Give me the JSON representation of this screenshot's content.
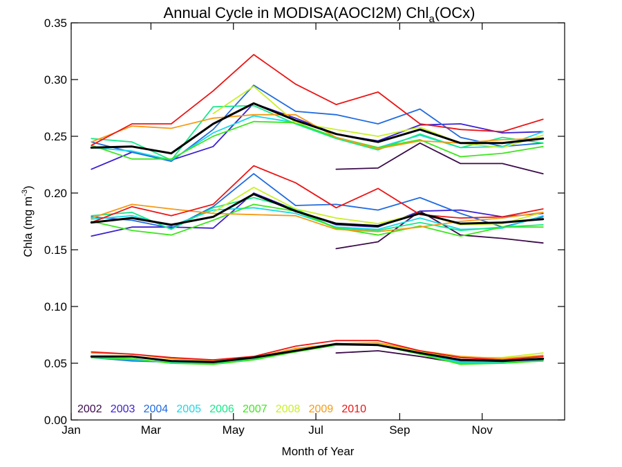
{
  "chart_data": {
    "type": "line",
    "title": "Annual Cycle in MODISA(AOCI2M) Chl",
    "title_sub_a": "a",
    "title_suffix": "(OCx)",
    "xlabel": "Month of Year",
    "ylabel": "Chla (mg m",
    "ylabel_sup": "-3",
    "ylabel_close": ")",
    "xlim": [
      0,
      365
    ],
    "ylim": [
      0,
      0.35
    ],
    "grid": false,
    "legend_position": "bottom-left",
    "x_ticks": [
      {
        "value": 0,
        "label": "Jan"
      },
      {
        "value": 59,
        "label": "Mar"
      },
      {
        "value": 120,
        "label": "May"
      },
      {
        "value": 181,
        "label": "Jul"
      },
      {
        "value": 243,
        "label": "Sep"
      },
      {
        "value": 304,
        "label": "Nov"
      }
    ],
    "y_ticks": [
      {
        "value": 0.0,
        "label": "0.00"
      },
      {
        "value": 0.05,
        "label": "0.05"
      },
      {
        "value": 0.1,
        "label": "0.10"
      },
      {
        "value": 0.15,
        "label": "0.15"
      },
      {
        "value": 0.2,
        "label": "0.20"
      },
      {
        "value": 0.25,
        "label": "0.25"
      },
      {
        "value": 0.3,
        "label": "0.30"
      },
      {
        "value": 0.35,
        "label": "0.35"
      }
    ],
    "x": [
      15,
      45,
      74,
      105,
      135,
      166,
      196,
      227,
      258,
      288,
      319,
      349
    ],
    "series": [
      {
        "name": "2002",
        "color": "#3b0a4a",
        "groups": [
          [
            null,
            null,
            null,
            null,
            null,
            null,
            0.221,
            0.222,
            0.244,
            0.226,
            0.226,
            0.217
          ],
          [
            null,
            null,
            null,
            null,
            null,
            null,
            0.151,
            0.157,
            0.184,
            0.163,
            0.16,
            0.156
          ],
          [
            null,
            null,
            null,
            null,
            null,
            null,
            0.059,
            0.061,
            0.056,
            0.05,
            0.051,
            0.053
          ]
        ]
      },
      {
        "name": "2003",
        "color": "#3a1fd0",
        "groups": [
          [
            0.221,
            0.236,
            0.229,
            0.241,
            0.279,
            0.266,
            0.252,
            0.246,
            0.26,
            0.261,
            0.253,
            0.254
          ],
          [
            0.162,
            0.17,
            0.17,
            0.169,
            0.2,
            0.185,
            0.172,
            0.17,
            0.184,
            0.185,
            0.179,
            0.182
          ],
          [
            0.055,
            0.053,
            0.051,
            0.051,
            0.054,
            0.061,
            0.067,
            0.067,
            0.059,
            0.052,
            0.051,
            0.053
          ]
        ]
      },
      {
        "name": "2004",
        "color": "#1f6be0",
        "groups": [
          [
            0.245,
            0.236,
            0.228,
            0.256,
            0.295,
            0.272,
            0.269,
            0.261,
            0.274,
            0.249,
            0.241,
            0.244
          ],
          [
            0.179,
            0.176,
            0.169,
            0.188,
            0.217,
            0.189,
            0.19,
            0.185,
            0.196,
            0.182,
            0.17,
            0.179
          ],
          [
            0.055,
            0.052,
            0.051,
            0.05,
            0.054,
            0.061,
            0.066,
            0.066,
            0.058,
            0.052,
            0.051,
            0.052
          ]
        ]
      },
      {
        "name": "2005",
        "color": "#19d7e6",
        "groups": [
          [
            0.24,
            0.237,
            0.229,
            0.253,
            0.268,
            0.262,
            0.249,
            0.24,
            0.251,
            0.24,
            0.241,
            0.254
          ],
          [
            0.177,
            0.18,
            0.171,
            0.185,
            0.187,
            0.182,
            0.17,
            0.168,
            0.178,
            0.168,
            0.169,
            0.18
          ],
          [
            0.055,
            0.053,
            0.051,
            0.05,
            0.053,
            0.06,
            0.066,
            0.066,
            0.058,
            0.051,
            0.051,
            0.052
          ]
        ]
      },
      {
        "name": "2006",
        "color": "#16e889",
        "groups": [
          [
            0.248,
            0.245,
            0.229,
            0.276,
            0.277,
            0.261,
            0.248,
            0.238,
            0.252,
            0.24,
            0.249,
            0.244
          ],
          [
            0.18,
            0.183,
            0.168,
            0.187,
            0.196,
            0.186,
            0.169,
            0.167,
            0.174,
            0.167,
            0.17,
            0.172
          ],
          [
            0.055,
            0.054,
            0.05,
            0.05,
            0.054,
            0.06,
            0.066,
            0.066,
            0.058,
            0.05,
            0.05,
            0.052
          ]
        ]
      },
      {
        "name": "2007",
        "color": "#3ce61d",
        "groups": [
          [
            0.242,
            0.23,
            0.23,
            0.25,
            0.263,
            0.262,
            0.249,
            0.24,
            0.247,
            0.232,
            0.235,
            0.241
          ],
          [
            0.175,
            0.167,
            0.163,
            0.176,
            0.19,
            0.184,
            0.169,
            0.163,
            0.171,
            0.162,
            0.17,
            0.17
          ],
          [
            0.055,
            0.054,
            0.05,
            0.049,
            0.053,
            0.06,
            0.066,
            0.066,
            0.058,
            0.049,
            0.05,
            0.052
          ]
        ]
      },
      {
        "name": "2008",
        "color": "#c8f026",
        "groups": [
          [
            null,
            null,
            null,
            0.27,
            0.294,
            0.262,
            0.256,
            0.25,
            0.258,
            0.244,
            0.24,
            0.251
          ],
          [
            null,
            null,
            null,
            0.183,
            0.205,
            0.186,
            0.178,
            0.173,
            0.182,
            0.172,
            0.173,
            0.183
          ],
          [
            null,
            null,
            null,
            0.053,
            0.055,
            0.062,
            0.067,
            0.067,
            0.06,
            0.055,
            0.055,
            0.059
          ]
        ]
      },
      {
        "name": "2009",
        "color": "#f59a14",
        "groups": [
          [
            0.245,
            0.259,
            0.257,
            0.266,
            0.269,
            0.269,
            0.249,
            0.239,
            0.246,
            0.244,
            0.247,
            0.248
          ],
          [
            0.178,
            0.19,
            0.186,
            0.182,
            0.181,
            0.18,
            0.168,
            0.166,
            0.17,
            0.175,
            0.178,
            0.183
          ],
          [
            0.059,
            0.058,
            0.054,
            0.052,
            0.055,
            0.063,
            0.067,
            0.068,
            0.061,
            0.056,
            0.054,
            0.057
          ]
        ]
      },
      {
        "name": "2010",
        "color": "#eb1414",
        "groups": [
          [
            0.242,
            0.261,
            0.261,
            0.29,
            0.322,
            0.296,
            0.278,
            0.289,
            0.261,
            0.256,
            0.254,
            0.265
          ],
          [
            0.174,
            0.188,
            0.18,
            0.19,
            0.224,
            0.209,
            0.187,
            0.204,
            0.181,
            0.178,
            0.179,
            0.186
          ],
          [
            0.06,
            0.058,
            0.055,
            0.053,
            0.056,
            0.065,
            0.07,
            0.07,
            0.061,
            0.055,
            0.053,
            0.056
          ]
        ]
      },
      {
        "name": "",
        "color": "#000000",
        "is_mean": true,
        "groups": [
          [
            0.24,
            0.241,
            0.235,
            0.261,
            0.279,
            0.264,
            0.252,
            0.245,
            0.256,
            0.244,
            0.244,
            0.248
          ],
          [
            0.174,
            0.178,
            0.172,
            0.179,
            0.199,
            0.184,
            0.173,
            0.171,
            0.182,
            0.173,
            0.174,
            0.177
          ],
          [
            0.056,
            0.056,
            0.052,
            0.051,
            0.055,
            0.061,
            0.067,
            0.066,
            0.059,
            0.053,
            0.052,
            0.054
          ]
        ]
      }
    ]
  }
}
